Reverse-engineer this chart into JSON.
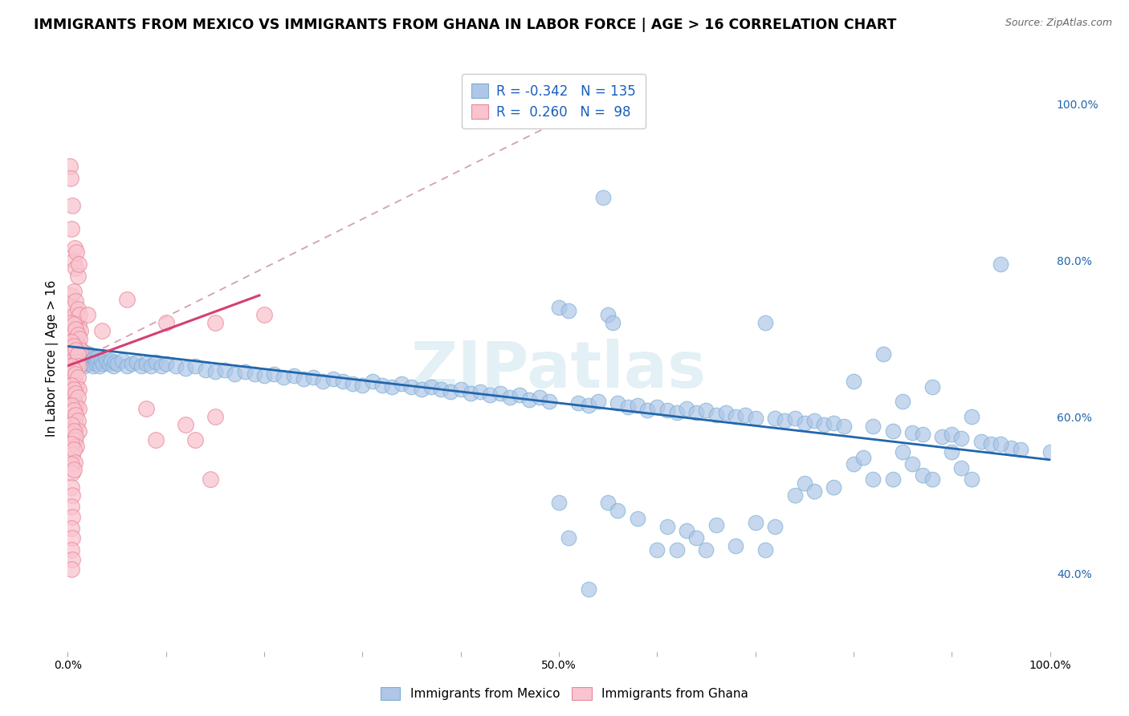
{
  "title": "IMMIGRANTS FROM MEXICO VS IMMIGRANTS FROM GHANA IN LABOR FORCE | AGE > 16 CORRELATION CHART",
  "source": "Source: ZipAtlas.com",
  "ylabel": "In Labor Force | Age > 16",
  "xlim": [
    0.0,
    1.0
  ],
  "ylim": [
    0.3,
    1.05
  ],
  "x_tick_positions": [
    0.0,
    0.1,
    0.2,
    0.3,
    0.4,
    0.5,
    0.6,
    0.7,
    0.8,
    0.9,
    1.0
  ],
  "x_tick_labels": [
    "0.0%",
    "",
    "",
    "",
    "",
    "50.0%",
    "",
    "",
    "",
    "",
    "100.0%"
  ],
  "y_ticks_right": [
    0.4,
    0.6,
    0.8,
    1.0
  ],
  "y_tick_labels_right": [
    "40.0%",
    "60.0%",
    "80.0%",
    "100.0%"
  ],
  "legend_entries": [
    {
      "label": "Immigrants from Mexico",
      "R": "-0.342",
      "N": "135",
      "fill": "#aec6e8",
      "edge": "#7bafd4"
    },
    {
      "label": "Immigrants from Ghana",
      "R": "0.260",
      "N": "98",
      "fill": "#f9c4cf",
      "edge": "#e88898"
    }
  ],
  "blue_line": [
    [
      0.0,
      0.69
    ],
    [
      1.0,
      0.545
    ]
  ],
  "pink_solid_line": [
    [
      0.0,
      0.665
    ],
    [
      0.195,
      0.755
    ]
  ],
  "pink_dashed_line": [
    [
      0.0,
      0.665
    ],
    [
      0.52,
      0.99
    ]
  ],
  "blue_scatter": [
    [
      0.004,
      0.685
    ],
    [
      0.005,
      0.672
    ],
    [
      0.006,
      0.68
    ],
    [
      0.007,
      0.665
    ],
    [
      0.008,
      0.675
    ],
    [
      0.009,
      0.668
    ],
    [
      0.01,
      0.69
    ],
    [
      0.011,
      0.672
    ],
    [
      0.012,
      0.68
    ],
    [
      0.013,
      0.67
    ],
    [
      0.014,
      0.675
    ],
    [
      0.015,
      0.668
    ],
    [
      0.016,
      0.678
    ],
    [
      0.017,
      0.665
    ],
    [
      0.018,
      0.682
    ],
    [
      0.019,
      0.672
    ],
    [
      0.02,
      0.675
    ],
    [
      0.021,
      0.668
    ],
    [
      0.022,
      0.68
    ],
    [
      0.023,
      0.67
    ],
    [
      0.024,
      0.672
    ],
    [
      0.025,
      0.678
    ],
    [
      0.026,
      0.665
    ],
    [
      0.027,
      0.675
    ],
    [
      0.028,
      0.668
    ],
    [
      0.029,
      0.672
    ],
    [
      0.03,
      0.676
    ],
    [
      0.032,
      0.665
    ],
    [
      0.034,
      0.672
    ],
    [
      0.036,
      0.668
    ],
    [
      0.038,
      0.675
    ],
    [
      0.04,
      0.67
    ],
    [
      0.042,
      0.668
    ],
    [
      0.044,
      0.672
    ],
    [
      0.046,
      0.665
    ],
    [
      0.048,
      0.67
    ],
    [
      0.05,
      0.668
    ],
    [
      0.055,
      0.672
    ],
    [
      0.06,
      0.665
    ],
    [
      0.065,
      0.668
    ],
    [
      0.07,
      0.67
    ],
    [
      0.075,
      0.665
    ],
    [
      0.08,
      0.668
    ],
    [
      0.085,
      0.665
    ],
    [
      0.09,
      0.67
    ],
    [
      0.095,
      0.665
    ],
    [
      0.1,
      0.668
    ],
    [
      0.11,
      0.665
    ],
    [
      0.12,
      0.662
    ],
    [
      0.13,
      0.665
    ],
    [
      0.14,
      0.66
    ],
    [
      0.15,
      0.658
    ],
    [
      0.16,
      0.66
    ],
    [
      0.17,
      0.655
    ],
    [
      0.18,
      0.658
    ],
    [
      0.19,
      0.655
    ],
    [
      0.2,
      0.652
    ],
    [
      0.21,
      0.655
    ],
    [
      0.22,
      0.65
    ],
    [
      0.23,
      0.652
    ],
    [
      0.24,
      0.648
    ],
    [
      0.25,
      0.65
    ],
    [
      0.26,
      0.645
    ],
    [
      0.27,
      0.648
    ],
    [
      0.28,
      0.645
    ],
    [
      0.29,
      0.642
    ],
    [
      0.3,
      0.64
    ],
    [
      0.31,
      0.645
    ],
    [
      0.32,
      0.64
    ],
    [
      0.33,
      0.638
    ],
    [
      0.34,
      0.642
    ],
    [
      0.35,
      0.638
    ],
    [
      0.36,
      0.635
    ],
    [
      0.37,
      0.638
    ],
    [
      0.38,
      0.635
    ],
    [
      0.39,
      0.632
    ],
    [
      0.4,
      0.635
    ],
    [
      0.41,
      0.63
    ],
    [
      0.42,
      0.632
    ],
    [
      0.43,
      0.628
    ],
    [
      0.44,
      0.63
    ],
    [
      0.45,
      0.625
    ],
    [
      0.46,
      0.628
    ],
    [
      0.47,
      0.622
    ],
    [
      0.48,
      0.625
    ],
    [
      0.49,
      0.62
    ],
    [
      0.5,
      0.74
    ],
    [
      0.51,
      0.735
    ],
    [
      0.52,
      0.618
    ],
    [
      0.53,
      0.615
    ],
    [
      0.54,
      0.62
    ],
    [
      0.545,
      0.88
    ],
    [
      0.55,
      0.73
    ],
    [
      0.555,
      0.72
    ],
    [
      0.56,
      0.618
    ],
    [
      0.57,
      0.612
    ],
    [
      0.58,
      0.615
    ],
    [
      0.59,
      0.608
    ],
    [
      0.6,
      0.612
    ],
    [
      0.61,
      0.608
    ],
    [
      0.62,
      0.605
    ],
    [
      0.63,
      0.61
    ],
    [
      0.64,
      0.605
    ],
    [
      0.65,
      0.608
    ],
    [
      0.66,
      0.602
    ],
    [
      0.67,
      0.605
    ],
    [
      0.68,
      0.6
    ],
    [
      0.69,
      0.602
    ],
    [
      0.7,
      0.598
    ],
    [
      0.71,
      0.72
    ],
    [
      0.72,
      0.598
    ],
    [
      0.73,
      0.595
    ],
    [
      0.74,
      0.598
    ],
    [
      0.75,
      0.592
    ],
    [
      0.76,
      0.595
    ],
    [
      0.77,
      0.59
    ],
    [
      0.78,
      0.592
    ],
    [
      0.79,
      0.588
    ],
    [
      0.8,
      0.645
    ],
    [
      0.82,
      0.588
    ],
    [
      0.83,
      0.68
    ],
    [
      0.84,
      0.582
    ],
    [
      0.85,
      0.62
    ],
    [
      0.86,
      0.58
    ],
    [
      0.87,
      0.578
    ],
    [
      0.88,
      0.638
    ],
    [
      0.89,
      0.575
    ],
    [
      0.9,
      0.578
    ],
    [
      0.91,
      0.572
    ],
    [
      0.92,
      0.6
    ],
    [
      0.93,
      0.568
    ],
    [
      0.94,
      0.565
    ],
    [
      0.95,
      0.795
    ],
    [
      0.96,
      0.56
    ],
    [
      0.97,
      0.558
    ],
    [
      0.5,
      0.49
    ],
    [
      0.51,
      0.445
    ],
    [
      0.53,
      0.38
    ],
    [
      0.55,
      0.49
    ],
    [
      0.56,
      0.48
    ],
    [
      0.58,
      0.47
    ],
    [
      0.6,
      0.43
    ],
    [
      0.61,
      0.46
    ],
    [
      0.62,
      0.43
    ],
    [
      0.63,
      0.455
    ],
    [
      0.64,
      0.445
    ],
    [
      0.65,
      0.43
    ],
    [
      0.66,
      0.462
    ],
    [
      0.68,
      0.435
    ],
    [
      0.7,
      0.465
    ],
    [
      0.71,
      0.43
    ],
    [
      0.72,
      0.46
    ],
    [
      0.74,
      0.5
    ],
    [
      0.75,
      0.515
    ],
    [
      0.76,
      0.505
    ],
    [
      0.78,
      0.51
    ],
    [
      0.8,
      0.54
    ],
    [
      0.81,
      0.548
    ],
    [
      0.82,
      0.52
    ],
    [
      0.84,
      0.52
    ],
    [
      0.85,
      0.555
    ],
    [
      0.86,
      0.54
    ],
    [
      0.87,
      0.525
    ],
    [
      0.88,
      0.52
    ],
    [
      0.9,
      0.555
    ],
    [
      0.91,
      0.535
    ],
    [
      0.92,
      0.52
    ],
    [
      0.95,
      0.565
    ],
    [
      1.0,
      0.555
    ]
  ],
  "pink_scatter": [
    [
      0.002,
      0.92
    ],
    [
      0.003,
      0.905
    ],
    [
      0.004,
      0.84
    ],
    [
      0.005,
      0.87
    ],
    [
      0.006,
      0.8
    ],
    [
      0.007,
      0.815
    ],
    [
      0.008,
      0.79
    ],
    [
      0.009,
      0.81
    ],
    [
      0.01,
      0.78
    ],
    [
      0.011,
      0.795
    ],
    [
      0.004,
      0.755
    ],
    [
      0.005,
      0.74
    ],
    [
      0.006,
      0.76
    ],
    [
      0.007,
      0.73
    ],
    [
      0.008,
      0.748
    ],
    [
      0.009,
      0.72
    ],
    [
      0.01,
      0.738
    ],
    [
      0.011,
      0.718
    ],
    [
      0.012,
      0.73
    ],
    [
      0.013,
      0.71
    ],
    [
      0.004,
      0.72
    ],
    [
      0.005,
      0.708
    ],
    [
      0.006,
      0.718
    ],
    [
      0.007,
      0.7
    ],
    [
      0.008,
      0.712
    ],
    [
      0.009,
      0.695
    ],
    [
      0.01,
      0.705
    ],
    [
      0.011,
      0.69
    ],
    [
      0.012,
      0.7
    ],
    [
      0.013,
      0.685
    ],
    [
      0.004,
      0.695
    ],
    [
      0.005,
      0.682
    ],
    [
      0.006,
      0.69
    ],
    [
      0.007,
      0.675
    ],
    [
      0.008,
      0.685
    ],
    [
      0.009,
      0.67
    ],
    [
      0.01,
      0.68
    ],
    [
      0.011,
      0.665
    ],
    [
      0.004,
      0.665
    ],
    [
      0.005,
      0.652
    ],
    [
      0.006,
      0.66
    ],
    [
      0.007,
      0.645
    ],
    [
      0.008,
      0.655
    ],
    [
      0.009,
      0.64
    ],
    [
      0.01,
      0.65
    ],
    [
      0.011,
      0.635
    ],
    [
      0.004,
      0.64
    ],
    [
      0.005,
      0.628
    ],
    [
      0.006,
      0.635
    ],
    [
      0.007,
      0.62
    ],
    [
      0.008,
      0.63
    ],
    [
      0.009,
      0.615
    ],
    [
      0.01,
      0.625
    ],
    [
      0.011,
      0.61
    ],
    [
      0.004,
      0.615
    ],
    [
      0.005,
      0.6
    ],
    [
      0.006,
      0.608
    ],
    [
      0.007,
      0.595
    ],
    [
      0.008,
      0.602
    ],
    [
      0.009,
      0.588
    ],
    [
      0.01,
      0.595
    ],
    [
      0.011,
      0.582
    ],
    [
      0.004,
      0.59
    ],
    [
      0.005,
      0.578
    ],
    [
      0.006,
      0.582
    ],
    [
      0.007,
      0.57
    ],
    [
      0.008,
      0.575
    ],
    [
      0.009,
      0.562
    ],
    [
      0.004,
      0.565
    ],
    [
      0.005,
      0.552
    ],
    [
      0.006,
      0.558
    ],
    [
      0.007,
      0.542
    ],
    [
      0.004,
      0.54
    ],
    [
      0.005,
      0.528
    ],
    [
      0.006,
      0.532
    ],
    [
      0.004,
      0.51
    ],
    [
      0.005,
      0.5
    ],
    [
      0.004,
      0.485
    ],
    [
      0.005,
      0.472
    ],
    [
      0.004,
      0.458
    ],
    [
      0.005,
      0.445
    ],
    [
      0.004,
      0.43
    ],
    [
      0.005,
      0.418
    ],
    [
      0.004,
      0.405
    ],
    [
      0.02,
      0.73
    ],
    [
      0.035,
      0.71
    ],
    [
      0.06,
      0.75
    ],
    [
      0.1,
      0.72
    ],
    [
      0.15,
      0.72
    ],
    [
      0.2,
      0.73
    ],
    [
      0.08,
      0.61
    ],
    [
      0.12,
      0.59
    ],
    [
      0.15,
      0.6
    ],
    [
      0.09,
      0.57
    ],
    [
      0.13,
      0.57
    ],
    [
      0.145,
      0.52
    ]
  ],
  "watermark": "ZIPatlas",
  "scatter_size_blue": 180,
  "scatter_size_pink": 200,
  "blue_dot_color": "#aec6e8",
  "blue_edge_color": "#7bafd4",
  "pink_dot_color": "#f9c4cf",
  "pink_edge_color": "#e88898",
  "blue_line_color": "#2166ac",
  "pink_solid_color": "#d44070",
  "pink_dashed_color": "#d4a0b0",
  "grid_color": "#cccccc",
  "title_fontsize": 12.5,
  "source_fontsize": 9,
  "axis_label_fontsize": 11,
  "tick_fontsize": 10,
  "legend_fontsize": 12
}
